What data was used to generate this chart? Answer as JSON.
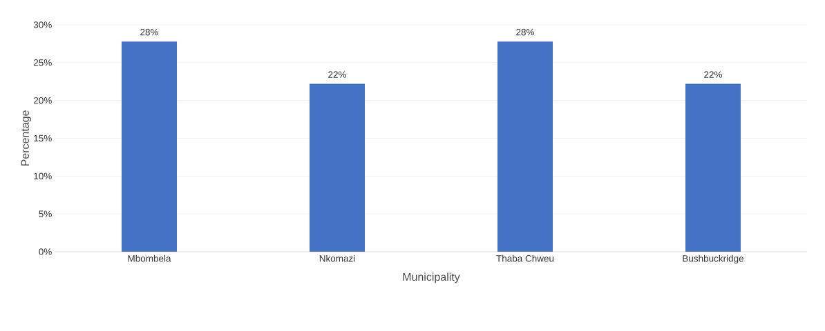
{
  "chart_data": {
    "type": "bar",
    "xlabel": "Municipality",
    "ylabel": "Percentage",
    "categories": [
      "Mbombela",
      "Nkomazi",
      "Thaba Chweu",
      "Bushbuckridge"
    ],
    "values": [
      27.8,
      22.2,
      27.8,
      22.2
    ],
    "value_labels": [
      "28%",
      "22%",
      "28%",
      "22%"
    ],
    "color": "#4472c4",
    "ylim": [
      0,
      30
    ],
    "yticks": [
      {
        "value": 0,
        "label": "0%"
      },
      {
        "value": 5,
        "label": "5%"
      },
      {
        "value": 10,
        "label": "10%"
      },
      {
        "value": 15,
        "label": "15%"
      },
      {
        "value": 20,
        "label": "20%"
      },
      {
        "value": 25,
        "label": "25%"
      },
      {
        "value": 30,
        "label": "30%"
      }
    ],
    "grid": "y"
  }
}
